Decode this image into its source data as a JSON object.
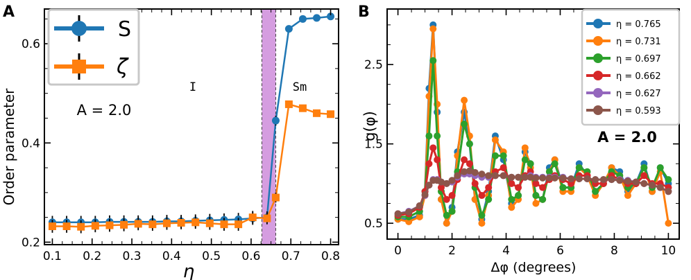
{
  "chart_data": [
    {
      "panel_label": "A",
      "type": "line",
      "xlabel": "η",
      "ylabel": "Order parameter",
      "xlim": [
        0.08,
        0.82
      ],
      "ylim": [
        0.195,
        0.67
      ],
      "xticks": [
        0.1,
        0.2,
        0.3,
        0.4,
        0.5,
        0.6,
        0.7,
        0.8
      ],
      "xtick_labels": [
        "0.1",
        "0.2",
        "0.3",
        "0.4",
        "0.5",
        "0.6",
        "0.7",
        "0.8"
      ],
      "yticks": [
        0.2,
        0.4,
        0.6
      ],
      "ytick_labels": [
        "0.2",
        "0.4",
        "0.6"
      ],
      "x": [
        0.1,
        0.136,
        0.172,
        0.208,
        0.244,
        0.28,
        0.316,
        0.352,
        0.388,
        0.424,
        0.46,
        0.496,
        0.532,
        0.568,
        0.604,
        0.64,
        0.662,
        0.695,
        0.73,
        0.765,
        0.8
      ],
      "series": [
        {
          "name": "S",
          "color": "#1f77b4",
          "marker": "circle",
          "values": [
            0.24,
            0.24,
            0.24,
            0.24,
            0.241,
            0.241,
            0.241,
            0.241,
            0.242,
            0.242,
            0.243,
            0.244,
            0.245,
            0.246,
            0.248,
            0.25,
            0.445,
            0.63,
            0.65,
            0.652,
            0.655
          ],
          "errors": [
            0.013,
            0.013,
            0.013,
            0.013,
            0.013,
            0.013,
            0.013,
            0.013,
            0.013,
            0.013,
            0.013,
            0.013,
            0.013,
            0.013,
            0.013,
            0.012,
            0.01,
            0.006,
            0.005,
            0.005,
            0.005
          ]
        },
        {
          "name": "ζ",
          "color": "#ff7f0e",
          "marker": "square",
          "values": [
            0.232,
            0.232,
            0.231,
            0.233,
            0.234,
            0.235,
            0.237,
            0.236,
            0.238,
            0.239,
            0.24,
            0.238,
            0.236,
            0.236,
            0.25,
            0.248,
            0.29,
            0.478,
            0.47,
            0.46,
            0.458
          ],
          "errors": [
            0.013,
            0.013,
            0.013,
            0.013,
            0.013,
            0.013,
            0.013,
            0.013,
            0.013,
            0.013,
            0.013,
            0.013,
            0.013,
            0.013,
            0.013,
            0.012,
            0.01,
            0.006,
            0.005,
            0.005,
            0.005
          ]
        }
      ],
      "shaded_region": {
        "x_range": [
          0.627,
          0.662
        ],
        "color": "#c77dd6"
      },
      "annotations": [
        {
          "text": "I",
          "x": 0.4,
          "y": 0.53
        },
        {
          "text": "Sm",
          "x": 0.74,
          "y": 0.53
        },
        {
          "text": "A = 2.0",
          "x": 0.24,
          "y": 0.465
        }
      ],
      "legend": {
        "placement": "top-left",
        "entries": [
          "S",
          "ζ"
        ]
      }
    },
    {
      "panel_label": "B",
      "type": "line",
      "xlabel": "Δφ (degrees)",
      "ylabel": "g(φ)",
      "xlim": [
        -0.4,
        10.4
      ],
      "ylim": [
        0.3,
        3.2
      ],
      "xticks": [
        0,
        2,
        4,
        6,
        8,
        10
      ],
      "xtick_labels": [
        "0",
        "2",
        "4",
        "6",
        "8",
        "10"
      ],
      "yticks": [
        0.5,
        1.5,
        2.5
      ],
      "ytick_labels": [
        "0.5",
        "1.5",
        "2.5"
      ],
      "annotation": {
        "text": "A = 2.0",
        "x": 8.3,
        "y": 1.75
      },
      "legend": {
        "placement": "top-right"
      },
      "series": [
        {
          "name": "η =  0.765",
          "eta": 0.765,
          "color": "#1f77b4",
          "x": [
            0,
            0.4,
            0.8,
            1.0,
            1.15,
            1.3,
            1.45,
            1.6,
            1.8,
            2.0,
            2.2,
            2.45,
            2.65,
            2.85,
            3.1,
            3.35,
            3.6,
            3.9,
            4.2,
            4.45,
            4.7,
            4.9,
            5.1,
            5.35,
            5.6,
            5.8,
            6.1,
            6.4,
            6.7,
            7.0,
            7.3,
            7.6,
            7.9,
            8.2,
            8.5,
            8.8,
            9.1,
            9.4,
            9.7,
            10.0
          ],
          "values": [
            0.55,
            0.55,
            0.6,
            0.9,
            2.2,
            3.0,
            1.9,
            0.8,
            0.5,
            0.7,
            1.4,
            1.9,
            1.5,
            0.8,
            0.55,
            0.9,
            1.6,
            1.3,
            0.75,
            0.85,
            1.4,
            1.25,
            0.85,
            0.8,
            1.2,
            1.3,
            0.95,
            0.95,
            1.25,
            1.1,
            0.9,
            1.0,
            1.2,
            1.15,
            0.9,
            1.0,
            1.25,
            0.9,
            1.2,
            1.0
          ]
        },
        {
          "name": "η =  0.731",
          "eta": 0.731,
          "color": "#ff7f0e",
          "x": [
            0,
            0.4,
            0.8,
            1.0,
            1.15,
            1.3,
            1.45,
            1.6,
            1.8,
            2.0,
            2.2,
            2.45,
            2.65,
            2.85,
            3.1,
            3.35,
            3.6,
            3.9,
            4.2,
            4.45,
            4.7,
            4.9,
            5.1,
            5.35,
            5.6,
            5.8,
            6.1,
            6.4,
            6.7,
            7.0,
            7.3,
            7.6,
            7.9,
            8.2,
            8.5,
            8.8,
            9.1,
            9.4,
            9.7,
            10.0
          ],
          "values": [
            0.55,
            0.52,
            0.58,
            0.85,
            2.1,
            2.95,
            2.0,
            0.8,
            0.5,
            0.65,
            1.35,
            2.05,
            1.6,
            0.8,
            0.5,
            0.85,
            1.55,
            1.4,
            0.7,
            0.8,
            1.45,
            1.2,
            0.75,
            0.8,
            1.15,
            1.3,
            0.9,
            0.9,
            1.2,
            1.1,
            0.85,
            1.0,
            1.2,
            1.1,
            0.85,
            1.0,
            1.2,
            0.9,
            1.15,
            0.5
          ]
        },
        {
          "name": "η =  0.697",
          "eta": 0.697,
          "color": "#2ca02c",
          "x": [
            0,
            0.4,
            0.8,
            1.0,
            1.15,
            1.3,
            1.45,
            1.6,
            1.8,
            2.0,
            2.2,
            2.45,
            2.65,
            2.85,
            3.1,
            3.35,
            3.6,
            3.9,
            4.2,
            4.45,
            4.7,
            4.9,
            5.1,
            5.35,
            5.6,
            5.8,
            6.1,
            6.4,
            6.7,
            7.0,
            7.3,
            7.6,
            7.9,
            8.2,
            8.5,
            8.8,
            9.1,
            9.4,
            9.7,
            10.0
          ],
          "values": [
            0.58,
            0.58,
            0.65,
            0.9,
            1.6,
            2.55,
            1.6,
            0.9,
            0.6,
            0.65,
            1.15,
            1.75,
            1.5,
            0.95,
            0.6,
            0.8,
            1.35,
            1.35,
            0.8,
            0.85,
            1.3,
            1.25,
            0.85,
            0.8,
            1.15,
            1.25,
            0.95,
            0.95,
            1.2,
            1.15,
            0.9,
            1.0,
            1.15,
            1.1,
            0.95,
            1.0,
            1.2,
            0.95,
            1.2,
            1.05
          ]
        },
        {
          "name": "η =  0.662",
          "eta": 0.662,
          "color": "#d62728",
          "x": [
            0,
            0.4,
            0.8,
            1.0,
            1.15,
            1.3,
            1.45,
            1.6,
            1.8,
            2.0,
            2.2,
            2.45,
            2.65,
            2.85,
            3.1,
            3.35,
            3.6,
            3.9,
            4.2,
            4.45,
            4.7,
            4.9,
            5.1,
            5.35,
            5.6,
            5.8,
            6.1,
            6.4,
            6.7,
            7.0,
            7.3,
            7.6,
            7.9,
            8.2,
            8.5,
            8.8,
            9.1,
            9.4,
            9.7,
            10.0
          ],
          "values": [
            0.6,
            0.62,
            0.7,
            0.9,
            1.25,
            1.45,
            1.3,
            0.95,
            0.8,
            0.85,
            1.05,
            1.3,
            1.25,
            1.0,
            0.85,
            0.95,
            1.15,
            1.2,
            1.0,
            0.95,
            1.1,
            1.15,
            1.0,
            0.95,
            1.05,
            1.1,
            1.05,
            1.0,
            1.1,
            1.1,
            1.0,
            1.0,
            1.1,
            1.05,
            1.0,
            1.0,
            1.1,
            1.0,
            1.0,
            0.95
          ]
        },
        {
          "name": "η =  0.627",
          "eta": 0.627,
          "color": "#9467bd",
          "x": [
            0,
            0.4,
            0.8,
            1.0,
            1.15,
            1.3,
            1.45,
            1.6,
            1.8,
            2.0,
            2.2,
            2.45,
            2.65,
            2.85,
            3.1,
            3.35,
            3.6,
            3.9,
            4.2,
            4.45,
            4.7,
            4.9,
            5.1,
            5.35,
            5.6,
            5.8,
            6.1,
            6.4,
            6.7,
            7.0,
            7.3,
            7.6,
            7.9,
            8.2,
            8.5,
            8.8,
            9.1,
            9.4,
            9.7,
            10.0
          ],
          "values": [
            0.62,
            0.65,
            0.72,
            0.85,
            0.98,
            1.05,
            1.05,
            1.02,
            1.0,
            1.02,
            1.08,
            1.12,
            1.12,
            1.1,
            1.08,
            1.08,
            1.1,
            1.1,
            1.08,
            1.08,
            1.08,
            1.1,
            1.08,
            1.08,
            1.08,
            1.08,
            1.08,
            1.06,
            1.06,
            1.06,
            1.05,
            1.05,
            1.05,
            1.05,
            1.04,
            1.02,
            1.0,
            0.98,
            0.95,
            0.9
          ]
        },
        {
          "name": "η =  0.593",
          "eta": 0.593,
          "color": "#8c564b",
          "x": [
            0,
            0.4,
            0.8,
            1.0,
            1.15,
            1.3,
            1.45,
            1.6,
            1.8,
            2.0,
            2.2,
            2.45,
            2.65,
            2.85,
            3.1,
            3.35,
            3.6,
            3.9,
            4.2,
            4.45,
            4.7,
            4.9,
            5.1,
            5.35,
            5.6,
            5.8,
            6.1,
            6.4,
            6.7,
            7.0,
            7.3,
            7.6,
            7.9,
            8.2,
            8.5,
            8.8,
            9.1,
            9.4,
            9.7,
            10.0
          ],
          "values": [
            0.62,
            0.64,
            0.72,
            0.86,
            0.98,
            1.04,
            1.04,
            1.02,
            1.0,
            1.04,
            1.1,
            1.15,
            1.16,
            1.14,
            1.12,
            1.1,
            1.1,
            1.1,
            1.08,
            1.08,
            1.08,
            1.08,
            1.07,
            1.07,
            1.07,
            1.07,
            1.07,
            1.06,
            1.06,
            1.06,
            1.05,
            1.05,
            1.05,
            1.04,
            1.03,
            1.02,
            1.0,
            0.98,
            0.95,
            0.9
          ]
        }
      ]
    }
  ]
}
